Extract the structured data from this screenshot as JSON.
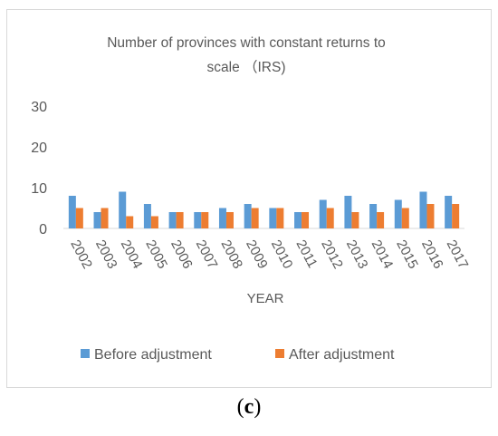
{
  "chart_data": {
    "type": "bar",
    "title": "Number of provinces with constant returns to scale （IRS)",
    "title_lines": [
      "Number of provinces with constant returns to",
      "scale （IRS)"
    ],
    "xlabel": "YEAR",
    "ylabel": "",
    "ylim": [
      0,
      30
    ],
    "yticks": [
      "30",
      "20",
      "10",
      "0"
    ],
    "ytick_values": [
      30,
      20,
      10,
      0
    ],
    "grid": false,
    "legend_position": "bottom",
    "categories": [
      "2002",
      "2003",
      "2004",
      "2005",
      "2006",
      "2007",
      "2008",
      "2009",
      "2010",
      "2011",
      "2012",
      "2013",
      "2014",
      "2015",
      "2016",
      "2017"
    ],
    "series": [
      {
        "name": "Before adjustment",
        "color": "#5B9BD5",
        "values": [
          8,
          4,
          9,
          6,
          4,
          4,
          5,
          6,
          5,
          4,
          7,
          8,
          6,
          7,
          9,
          8
        ]
      },
      {
        "name": "After adjustment",
        "color": "#ED7D31",
        "values": [
          5,
          5,
          3,
          3,
          4,
          4,
          4,
          5,
          5,
          4,
          5,
          4,
          4,
          5,
          6,
          6
        ]
      }
    ]
  },
  "caption": {
    "open": "(",
    "letter": "c",
    "close": ")"
  }
}
